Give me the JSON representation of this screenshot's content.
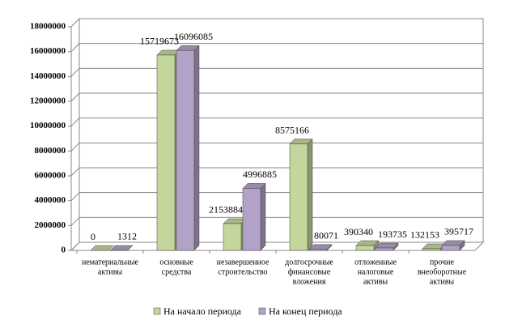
{
  "chart_data": {
    "type": "bar3d",
    "categories": [
      [
        "нематериальные",
        "активы"
      ],
      [
        "основные",
        "средства"
      ],
      [
        "незавершенное",
        "строительство"
      ],
      [
        "долгосрочные",
        "финансовые",
        "вложения"
      ],
      [
        "отложенные",
        "налоговые",
        "активы"
      ],
      [
        "прочие",
        "внеоборотные",
        "активы"
      ]
    ],
    "series": [
      {
        "name": "На начало периода",
        "color": "#c3d69b",
        "values": [
          0,
          15719673,
          2153884,
          8575166,
          390340,
          132153
        ]
      },
      {
        "name": "На конец периода",
        "color": "#b3a2c7",
        "values": [
          1312,
          16096085,
          4996885,
          80071,
          193735,
          395717
        ]
      }
    ],
    "ylim": [
      0,
      18000000
    ],
    "yticks": [
      0,
      2000000,
      4000000,
      6000000,
      8000000,
      10000000,
      12000000,
      14000000,
      16000000,
      18000000
    ],
    "grid": true
  }
}
